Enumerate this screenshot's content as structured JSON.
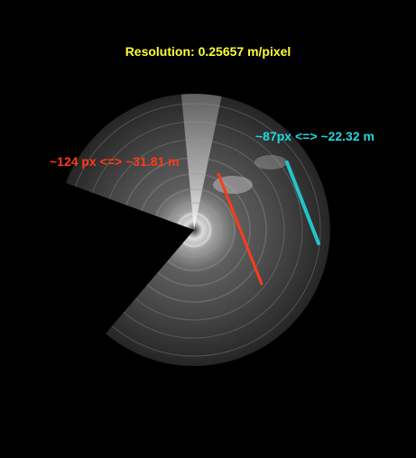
{
  "title": "Resolution: 0.25657 m/pixel",
  "measurements": [
    {
      "text": "~124 px <=> ~31.81 m",
      "color": "#ff3b1a"
    },
    {
      "text": "~87px <=> ~22.32 m",
      "color": "#22d8dc"
    }
  ],
  "colors": {
    "background": "#000000",
    "title": "#ffff33",
    "sonar_gray": "#6e6e6e"
  }
}
